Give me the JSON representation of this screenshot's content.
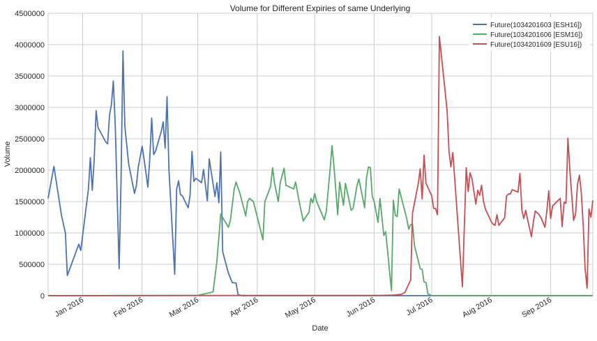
{
  "chart_data": {
    "type": "line",
    "title": "Volume for Different Expiries of same Underlying",
    "xlabel": "Date",
    "ylabel": "Volume",
    "ylim": [
      0,
      4500000
    ],
    "xlim": [
      "2015-12-14",
      "2016-09-23"
    ],
    "grid": true,
    "legend_position": "top-right",
    "y_ticks": [
      "0",
      "500000",
      "1000000",
      "1500000",
      "2000000",
      "2500000",
      "3000000",
      "3500000",
      "4000000",
      "4500000"
    ],
    "x_ticks": [
      {
        "date": "2016-01-01",
        "label": "Jan 2016"
      },
      {
        "date": "2016-02-01",
        "label": "Feb 2016"
      },
      {
        "date": "2016-03-01",
        "label": "Mar 2016"
      },
      {
        "date": "2016-04-01",
        "label": "Apr 2016"
      },
      {
        "date": "2016-05-01",
        "label": "May 2016"
      },
      {
        "date": "2016-06-01",
        "label": "Jun 2016"
      },
      {
        "date": "2016-07-01",
        "label": "Jul 2016"
      },
      {
        "date": "2016-08-01",
        "label": "Aug 2016"
      },
      {
        "date": "2016-09-01",
        "label": "Sep 2016"
      }
    ],
    "series": [
      {
        "name": "Future(1034201603 [ESH16])",
        "color": "#4c72b0",
        "points": [
          [
            "2015-12-14",
            1550000
          ],
          [
            "2015-12-17",
            2060000
          ],
          [
            "2015-12-21",
            1270000
          ],
          [
            "2015-12-23",
            1000000
          ],
          [
            "2015-12-24",
            320000
          ],
          [
            "2015-12-30",
            820000
          ],
          [
            "2015-12-31",
            720000
          ],
          [
            "2016-01-04",
            1700000
          ],
          [
            "2016-01-05",
            2200000
          ],
          [
            "2016-01-06",
            1680000
          ],
          [
            "2016-01-07",
            2150000
          ],
          [
            "2016-01-08",
            2950000
          ],
          [
            "2016-01-09",
            2680000
          ],
          [
            "2016-01-13",
            2450000
          ],
          [
            "2016-01-14",
            2420000
          ],
          [
            "2016-01-15",
            2870000
          ],
          [
            "2016-01-16",
            3050000
          ],
          [
            "2016-01-17",
            3420000
          ],
          [
            "2016-01-18",
            2700000
          ],
          [
            "2016-01-20",
            430000
          ],
          [
            "2016-01-21",
            1800000
          ],
          [
            "2016-01-22",
            3900000
          ],
          [
            "2016-01-23",
            2700000
          ],
          [
            "2016-01-25",
            2100000
          ],
          [
            "2016-01-28",
            1630000
          ],
          [
            "2016-01-29",
            1750000
          ],
          [
            "2016-01-30",
            2050000
          ],
          [
            "2016-02-01",
            2380000
          ],
          [
            "2016-02-02",
            2180000
          ],
          [
            "2016-02-04",
            1730000
          ],
          [
            "2016-02-05",
            2200000
          ],
          [
            "2016-02-06",
            2830000
          ],
          [
            "2016-02-07",
            2250000
          ],
          [
            "2016-02-08",
            2300000
          ],
          [
            "2016-02-11",
            2620000
          ],
          [
            "2016-02-12",
            2770000
          ],
          [
            "2016-02-13",
            2350000
          ],
          [
            "2016-02-14",
            3170000
          ],
          [
            "2016-02-15",
            2000000
          ],
          [
            "2016-02-18",
            340000
          ],
          [
            "2016-02-19",
            1700000
          ],
          [
            "2016-02-20",
            1830000
          ],
          [
            "2016-02-21",
            1610000
          ],
          [
            "2016-02-22",
            1590000
          ],
          [
            "2016-02-25",
            1400000
          ],
          [
            "2016-02-26",
            1600000
          ],
          [
            "2016-02-27",
            2300000
          ],
          [
            "2016-02-28",
            1820000
          ],
          [
            "2016-02-29",
            1870000
          ],
          [
            "2016-03-03",
            1800000
          ],
          [
            "2016-03-04",
            2010000
          ],
          [
            "2016-03-06",
            1510000
          ],
          [
            "2016-03-07",
            2180000
          ],
          [
            "2016-03-10",
            1580000
          ],
          [
            "2016-03-11",
            1800000
          ],
          [
            "2016-03-12",
            1480000
          ],
          [
            "2016-03-13",
            2290000
          ],
          [
            "2016-03-14",
            700000
          ],
          [
            "2016-03-17",
            360000
          ],
          [
            "2016-03-19",
            210000
          ],
          [
            "2016-03-21",
            200000
          ],
          [
            "2016-03-22",
            20000
          ],
          [
            "2016-03-24",
            0
          ],
          [
            "2016-09-23",
            0
          ]
        ]
      },
      {
        "name": "Future(1034201606 [ESM16])",
        "color": "#55a868",
        "points": [
          [
            "2015-12-14",
            0
          ],
          [
            "2016-03-01",
            5000
          ],
          [
            "2016-03-04",
            25000
          ],
          [
            "2016-03-09",
            60000
          ],
          [
            "2016-03-11",
            550000
          ],
          [
            "2016-03-13",
            1300000
          ],
          [
            "2016-03-17",
            1090000
          ],
          [
            "2016-03-18",
            1200000
          ],
          [
            "2016-03-20",
            1700000
          ],
          [
            "2016-03-21",
            1810000
          ],
          [
            "2016-03-23",
            1630000
          ],
          [
            "2016-03-26",
            1270000
          ],
          [
            "2016-03-27",
            1500000
          ],
          [
            "2016-03-28",
            1550000
          ],
          [
            "2016-03-30",
            1500000
          ],
          [
            "2016-04-04",
            890000
          ],
          [
            "2016-04-05",
            1500000
          ],
          [
            "2016-04-08",
            1740000
          ],
          [
            "2016-04-09",
            2040000
          ],
          [
            "2016-04-10",
            1800000
          ],
          [
            "2016-04-12",
            1500000
          ],
          [
            "2016-04-13",
            1800000
          ],
          [
            "2016-04-15",
            2030000
          ],
          [
            "2016-04-16",
            1760000
          ],
          [
            "2016-04-20",
            1700000
          ],
          [
            "2016-04-21",
            1810000
          ],
          [
            "2016-04-23",
            1480000
          ],
          [
            "2016-04-25",
            1190000
          ],
          [
            "2016-04-28",
            1330000
          ],
          [
            "2016-04-29",
            1550000
          ],
          [
            "2016-04-30",
            1480000
          ],
          [
            "2016-05-01",
            1630000
          ],
          [
            "2016-05-02",
            1500000
          ],
          [
            "2016-05-06",
            1210000
          ],
          [
            "2016-05-07",
            1340000
          ],
          [
            "2016-05-09",
            2010000
          ],
          [
            "2016-05-10",
            2390000
          ],
          [
            "2016-05-11",
            2070000
          ],
          [
            "2016-05-13",
            1290000
          ],
          [
            "2016-05-14",
            1810000
          ],
          [
            "2016-05-16",
            1440000
          ],
          [
            "2016-05-17",
            1790000
          ],
          [
            "2016-05-20",
            1360000
          ],
          [
            "2016-05-21",
            1390000
          ],
          [
            "2016-05-23",
            1750000
          ],
          [
            "2016-05-24",
            1860000
          ],
          [
            "2016-05-26",
            1560000
          ],
          [
            "2016-05-27",
            1400000
          ],
          [
            "2016-05-28",
            1880000
          ],
          [
            "2016-05-29",
            2050000
          ],
          [
            "2016-05-30",
            2040000
          ],
          [
            "2016-05-31",
            1580000
          ],
          [
            "2016-06-01",
            1500000
          ],
          [
            "2016-06-03",
            1170000
          ],
          [
            "2016-06-04",
            1550000
          ],
          [
            "2016-06-06",
            960000
          ],
          [
            "2016-06-07",
            1020000
          ],
          [
            "2016-06-10",
            80000
          ],
          [
            "2016-06-11",
            1520000
          ],
          [
            "2016-06-12",
            1280000
          ],
          [
            "2016-06-13",
            1260000
          ],
          [
            "2016-06-14",
            1700000
          ],
          [
            "2016-06-18",
            1220000
          ],
          [
            "2016-06-19",
            1060000
          ],
          [
            "2016-06-20",
            1130000
          ],
          [
            "2016-06-21",
            1140000
          ],
          [
            "2016-06-22",
            800000
          ],
          [
            "2016-06-25",
            430000
          ],
          [
            "2016-06-26",
            420000
          ],
          [
            "2016-06-27",
            220000
          ],
          [
            "2016-06-28",
            210000
          ],
          [
            "2016-06-29",
            30000
          ],
          [
            "2016-07-01",
            0
          ],
          [
            "2016-09-23",
            0
          ]
        ]
      },
      {
        "name": "Future(1034201609 [ESU16])",
        "color": "#c44e52",
        "points": [
          [
            "2015-12-14",
            0
          ],
          [
            "2016-05-10",
            5000
          ],
          [
            "2016-06-04",
            5000
          ],
          [
            "2016-06-11",
            10000
          ],
          [
            "2016-06-15",
            20000
          ],
          [
            "2016-06-17",
            50000
          ],
          [
            "2016-06-20",
            250000
          ],
          [
            "2016-06-21",
            1320000
          ],
          [
            "2016-06-24",
            1790000
          ],
          [
            "2016-06-25",
            2020000
          ],
          [
            "2016-06-26",
            1540000
          ],
          [
            "2016-06-27",
            2240000
          ],
          [
            "2016-06-28",
            1790000
          ],
          [
            "2016-07-01",
            1590000
          ],
          [
            "2016-07-02",
            1390000
          ],
          [
            "2016-07-03",
            1390000
          ],
          [
            "2016-07-04",
            1290000
          ],
          [
            "2016-07-05",
            4130000
          ],
          [
            "2016-07-09",
            2960000
          ],
          [
            "2016-07-10",
            2300000
          ],
          [
            "2016-07-11",
            2050000
          ],
          [
            "2016-07-12",
            2280000
          ],
          [
            "2016-07-17",
            140000
          ],
          [
            "2016-07-19",
            2040000
          ],
          [
            "2016-07-20",
            1660000
          ],
          [
            "2016-07-21",
            1960000
          ],
          [
            "2016-07-22",
            1860000
          ],
          [
            "2016-07-24",
            1460000
          ],
          [
            "2016-07-25",
            1680000
          ],
          [
            "2016-07-26",
            1600000
          ],
          [
            "2016-07-27",
            1760000
          ],
          [
            "2016-07-28",
            1500000
          ],
          [
            "2016-07-29",
            1380000
          ],
          [
            "2016-08-01",
            1180000
          ],
          [
            "2016-08-02",
            1140000
          ],
          [
            "2016-08-03",
            1120000
          ],
          [
            "2016-08-04",
            1290000
          ],
          [
            "2016-08-05",
            1120000
          ],
          [
            "2016-08-06",
            1160000
          ],
          [
            "2016-08-08",
            1240000
          ],
          [
            "2016-08-09",
            1590000
          ],
          [
            "2016-08-10",
            1620000
          ],
          [
            "2016-08-11",
            1620000
          ],
          [
            "2016-08-12",
            1690000
          ],
          [
            "2016-08-15",
            1650000
          ],
          [
            "2016-08-16",
            1950000
          ],
          [
            "2016-08-17",
            1360000
          ],
          [
            "2016-08-18",
            1230000
          ],
          [
            "2016-08-19",
            1360000
          ],
          [
            "2016-08-20",
            1210000
          ],
          [
            "2016-08-22",
            940000
          ],
          [
            "2016-08-23",
            1180000
          ],
          [
            "2016-08-24",
            1350000
          ],
          [
            "2016-08-26",
            1290000
          ],
          [
            "2016-08-27",
            1240000
          ],
          [
            "2016-08-29",
            1090000
          ],
          [
            "2016-08-30",
            1340000
          ],
          [
            "2016-08-31",
            1670000
          ],
          [
            "2016-09-01",
            1230000
          ],
          [
            "2016-09-02",
            1430000
          ],
          [
            "2016-09-05",
            1520000
          ],
          [
            "2016-09-06",
            1550000
          ],
          [
            "2016-09-07",
            1100000
          ],
          [
            "2016-09-08",
            1490000
          ],
          [
            "2016-09-09",
            1470000
          ],
          [
            "2016-09-10",
            2510000
          ],
          [
            "2016-09-11",
            2010000
          ],
          [
            "2016-09-13",
            1200000
          ],
          [
            "2016-09-14",
            1300000
          ],
          [
            "2016-09-15",
            1770000
          ],
          [
            "2016-09-16",
            1920000
          ],
          [
            "2016-09-17",
            1640000
          ],
          [
            "2016-09-18",
            1100000
          ],
          [
            "2016-09-19",
            420000
          ],
          [
            "2016-09-20",
            120000
          ],
          [
            "2016-09-21",
            1380000
          ],
          [
            "2016-09-22",
            1250000
          ],
          [
            "2016-09-23",
            1520000
          ]
        ]
      }
    ]
  }
}
